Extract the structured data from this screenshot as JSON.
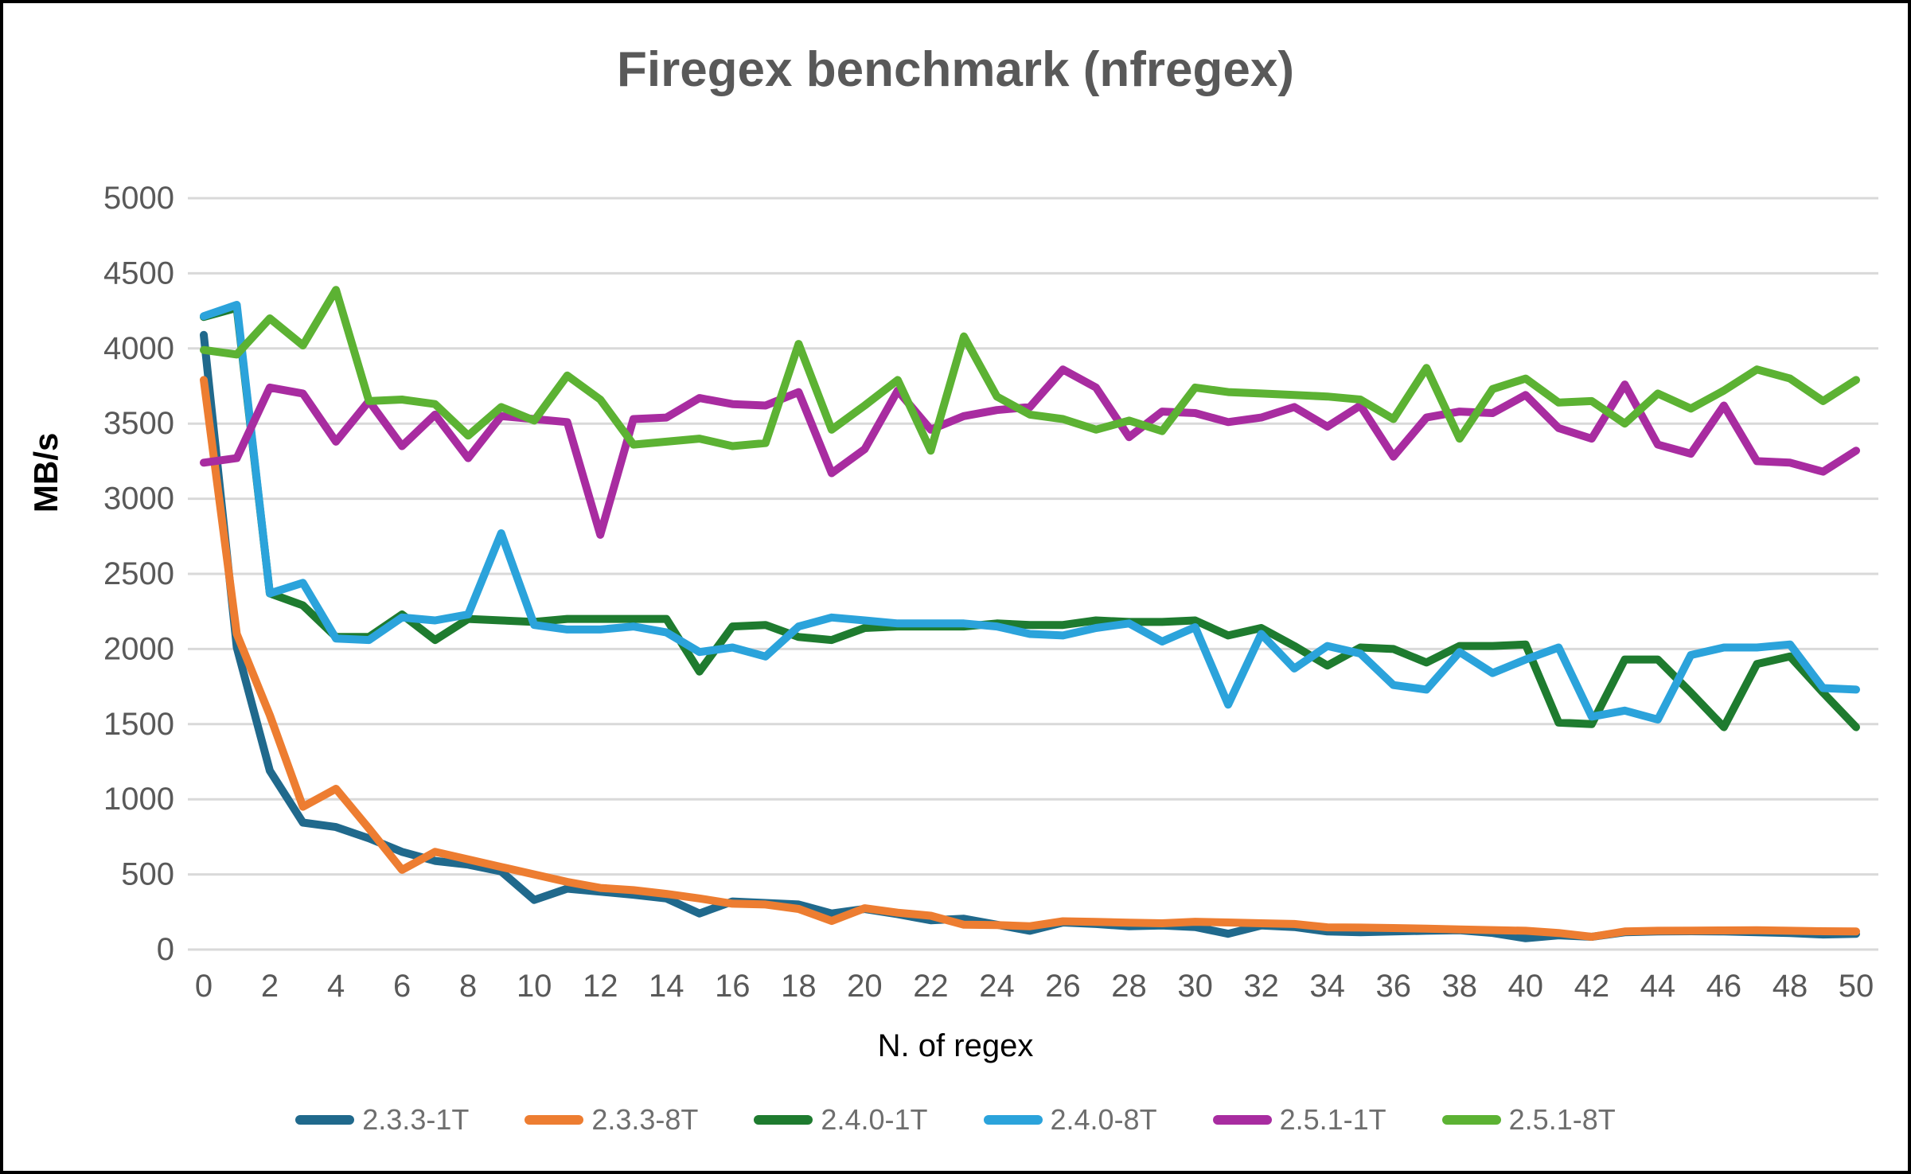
{
  "title": "Firegex benchmark (nfregex)",
  "y_axis": {
    "label": "MB/s",
    "min": 0,
    "max": 5000,
    "ticks": [
      0,
      500,
      1000,
      1500,
      2000,
      2500,
      3000,
      3500,
      4000,
      4500,
      5000
    ]
  },
  "x_axis": {
    "label": "N. of regex",
    "min": 0,
    "max": 50,
    "ticks": [
      0,
      2,
      4,
      6,
      8,
      10,
      12,
      14,
      16,
      18,
      20,
      22,
      24,
      26,
      28,
      30,
      32,
      34,
      36,
      38,
      40,
      42,
      44,
      46,
      48,
      50
    ]
  },
  "style_colors": {
    "grid": "#d9d9d9",
    "tick_text": "#595959",
    "title_text": "#595959",
    "legend_text": "#6e6e6e"
  },
  "chart_data": {
    "type": "line",
    "title": "Firegex benchmark (nfregex)",
    "xlabel": "N. of regex",
    "ylabel": "MB/s",
    "ylim": [
      0,
      5000
    ],
    "grid": "horizontal",
    "legend_position": "bottom",
    "x": [
      0,
      1,
      2,
      3,
      4,
      5,
      6,
      7,
      8,
      9,
      10,
      11,
      12,
      13,
      14,
      15,
      16,
      17,
      18,
      19,
      20,
      21,
      22,
      23,
      24,
      25,
      26,
      27,
      28,
      29,
      30,
      31,
      32,
      33,
      34,
      35,
      36,
      37,
      38,
      39,
      40,
      41,
      42,
      43,
      44,
      45,
      46,
      47,
      48,
      49,
      50
    ],
    "series": [
      {
        "name": "2.3.3-1T",
        "color": "#20698c",
        "values": [
          4090,
          2010,
          1190,
          845,
          815,
          740,
          650,
          590,
          565,
          520,
          330,
          405,
          385,
          365,
          340,
          240,
          320,
          310,
          300,
          240,
          270,
          235,
          195,
          205,
          165,
          125,
          180,
          170,
          155,
          160,
          150,
          105,
          160,
          150,
          120,
          115,
          120,
          125,
          128,
          110,
          75,
          95,
          85,
          115,
          120,
          122,
          120,
          115,
          110,
          100,
          105
        ]
      },
      {
        "name": "2.3.3-8T",
        "color": "#ed7d31",
        "values": [
          3790,
          2100,
          1560,
          950,
          1070,
          805,
          530,
          650,
          600,
          550,
          500,
          450,
          410,
          395,
          370,
          340,
          305,
          300,
          270,
          190,
          275,
          245,
          225,
          165,
          163,
          155,
          188,
          184,
          179,
          175,
          185,
          180,
          175,
          170,
          148,
          146,
          143,
          139,
          134,
          129,
          125,
          110,
          85,
          120,
          125,
          126,
          127,
          128,
          125,
          122,
          120
        ]
      },
      {
        "name": "2.4.0-1T",
        "color": "#1e7b2f",
        "values": [
          4210,
          4270,
          2370,
          2290,
          2080,
          2080,
          2230,
          2060,
          2200,
          2190,
          2180,
          2200,
          2200,
          2200,
          2200,
          1850,
          2150,
          2160,
          2080,
          2060,
          2140,
          2150,
          2150,
          2150,
          2170,
          2160,
          2160,
          2190,
          2180,
          2180,
          2190,
          2090,
          2140,
          2020,
          1890,
          2010,
          2000,
          1910,
          2020,
          2020,
          2030,
          1510,
          1500,
          1930,
          1930,
          1710,
          1480,
          1900,
          1950,
          1710,
          1480
        ]
      },
      {
        "name": "2.4.0-8T",
        "color": "#2ba3db",
        "values": [
          4215,
          4290,
          2370,
          2440,
          2070,
          2060,
          2210,
          2190,
          2230,
          2770,
          2160,
          2130,
          2130,
          2150,
          2110,
          1980,
          2010,
          1950,
          2150,
          2210,
          2190,
          2170,
          2170,
          2170,
          2150,
          2100,
          2090,
          2140,
          2170,
          2050,
          2145,
          1630,
          2100,
          1870,
          2020,
          1970,
          1760,
          1730,
          1980,
          1840,
          1930,
          2010,
          1550,
          1590,
          1530,
          1960,
          2010,
          2010,
          2030,
          1740,
          1730
        ]
      },
      {
        "name": "2.5.1-1T",
        "color": "#a82ca0",
        "values": [
          3240,
          3270,
          3740,
          3700,
          3380,
          3650,
          3350,
          3560,
          3270,
          3550,
          3530,
          3510,
          2760,
          3530,
          3540,
          3670,
          3630,
          3620,
          3710,
          3170,
          3330,
          3720,
          3460,
          3550,
          3590,
          3610,
          3860,
          3740,
          3410,
          3580,
          3570,
          3510,
          3540,
          3610,
          3480,
          3620,
          3280,
          3540,
          3580,
          3570,
          3690,
          3470,
          3400,
          3760,
          3360,
          3300,
          3620,
          3250,
          3240,
          3180,
          3320
        ]
      },
      {
        "name": "2.5.1-8T",
        "color": "#5cb233",
        "values": [
          3990,
          3960,
          4200,
          4020,
          4390,
          3650,
          3660,
          3630,
          3420,
          3610,
          3520,
          3820,
          3660,
          3360,
          3380,
          3400,
          3350,
          3370,
          4030,
          3460,
          3620,
          3790,
          3320,
          4080,
          3680,
          3560,
          3530,
          3460,
          3520,
          3450,
          3740,
          3710,
          3700,
          3690,
          3680,
          3660,
          3530,
          3870,
          3400,
          3730,
          3800,
          3640,
          3650,
          3500,
          3700,
          3600,
          3720,
          3860,
          3800,
          3650,
          3790
        ]
      }
    ]
  }
}
